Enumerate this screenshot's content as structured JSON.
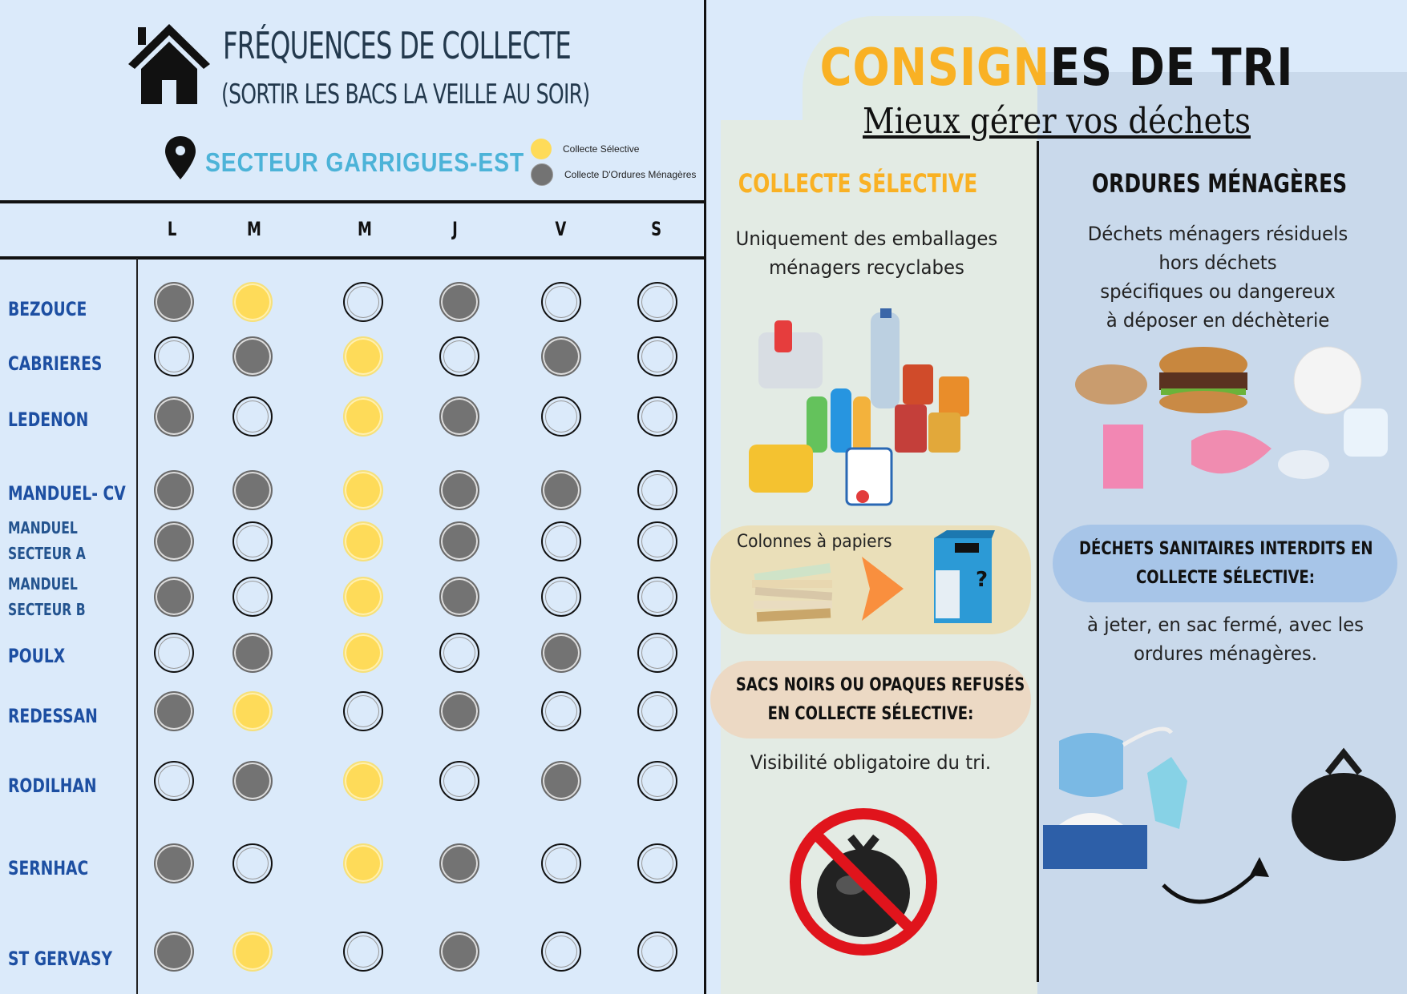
{
  "left_panel": {
    "title": "FRÉQUENCES DE COLLECTE",
    "subtitle": "(SORTIR LES BACS LA VEILLE AU SOIR)",
    "sector": "SECTEUR GARRIGUES-EST",
    "icons": {
      "house": "house-icon",
      "pin": "map-pin-icon"
    },
    "legend": [
      {
        "label": "Collecte Sélective",
        "color": "#fedb59",
        "key": "cs"
      },
      {
        "label": "Collecte D'Ordures Ménagères",
        "color": "#737373",
        "key": "om"
      }
    ],
    "days": [
      "L",
      "M",
      "M",
      "J",
      "V",
      "S"
    ],
    "towns": [
      {
        "name": "BEZOUCE",
        "schedule": [
          "om",
          "cs",
          "none",
          "om",
          "none",
          "none"
        ]
      },
      {
        "name": "CABRIERES",
        "schedule": [
          "none",
          "om",
          "cs",
          "none",
          "om",
          "none"
        ]
      },
      {
        "name": "LEDENON",
        "schedule": [
          "om",
          "none",
          "cs",
          "om",
          "none",
          "none"
        ]
      },
      {
        "name": "MANDUEL- CV",
        "schedule": [
          "om",
          "om",
          "cs",
          "om",
          "om",
          "none"
        ]
      },
      {
        "name": "MANDUEL SECTEUR A",
        "line1": "MANDUEL",
        "line2": "SECTEUR A",
        "schedule": [
          "om",
          "none",
          "cs",
          "om",
          "none",
          "none"
        ]
      },
      {
        "name": "MANDUEL SECTEUR B",
        "line1": "MANDUEL",
        "line2": "SECTEUR B",
        "schedule": [
          "om",
          "none",
          "cs",
          "om",
          "none",
          "none"
        ]
      },
      {
        "name": "POULX",
        "schedule": [
          "none",
          "om",
          "cs",
          "none",
          "om",
          "none"
        ]
      },
      {
        "name": "REDESSAN",
        "schedule": [
          "om",
          "cs",
          "none",
          "om",
          "none",
          "none"
        ]
      },
      {
        "name": "RODILHAN",
        "schedule": [
          "none",
          "om",
          "cs",
          "none",
          "om",
          "none"
        ]
      },
      {
        "name": "SERNHAC",
        "schedule": [
          "om",
          "none",
          "cs",
          "om",
          "none",
          "none"
        ]
      },
      {
        "name": "ST GERVASY",
        "schedule": [
          "om",
          "cs",
          "none",
          "om",
          "none",
          "none"
        ]
      }
    ]
  },
  "right_panel": {
    "title_part1": "CONSIGN",
    "title_part2": "ES DE TRI",
    "subtitle": "Mieux gérer vos déchets",
    "selective": {
      "heading": "COLLECTE SÉLECTIVE",
      "description_line1": "Uniquement des emballages",
      "description_line2": "ménagers recyclabes",
      "paper_label": "Colonnes à papiers",
      "warning_line1": "SACS NOIRS OU OPAQUES REFUSÉS",
      "warning_line2": "EN COLLECTE SÉLECTIVE:",
      "warning_note": "Visibilité obligatoire du tri."
    },
    "household": {
      "heading": "ORDURES MÉNAGÈRES",
      "description_lines": [
        "Déchets ménagers résiduels",
        "hors déchets",
        "spécifiques ou dangereux",
        "à déposer en déchèterie"
      ],
      "warning_line1": "DÉCHETS SANITAIRES INTERDITS EN",
      "warning_line2": "COLLECTE SÉLECTIVE:",
      "note_line1": "à jeter, en sac fermé, avec les",
      "note_line2": "ordures ménagères."
    },
    "colors": {
      "accent_yellow": "#f9b124",
      "orange_arrow": "#f98f3e",
      "no_sign_red": "#e0141c"
    }
  }
}
